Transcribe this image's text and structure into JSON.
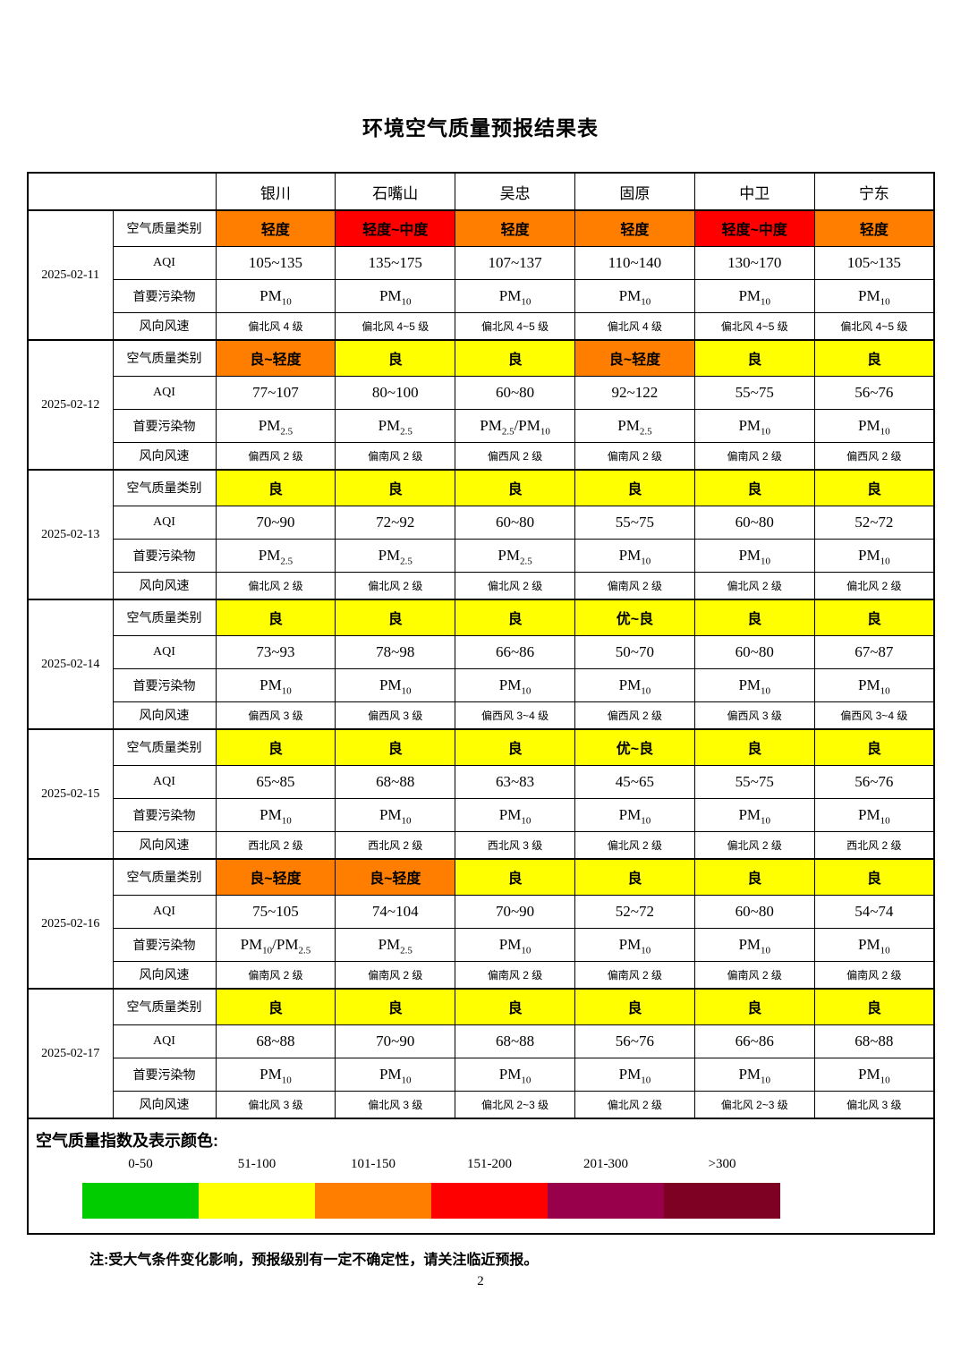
{
  "page": {
    "title": "环境空气质量预报结果表",
    "note": "注:受大气条件变化影响，预报级别有一定不确定性，请关注临近预报。",
    "page_number": "2"
  },
  "colors": {
    "yellow": "#FFFF00",
    "orange": "#FF7E00",
    "red": "#FF0000"
  },
  "table": {
    "cities": [
      "银川",
      "石嘴山",
      "吴忠",
      "固原",
      "中卫",
      "宁东"
    ],
    "row_labels": {
      "category": "空气质量类别",
      "aqi": "AQI",
      "pollutant": "首要污染物",
      "wind": "风向风速"
    },
    "days": [
      {
        "date": "2025-02-11",
        "category": [
          {
            "text": "轻度",
            "color": "orange"
          },
          {
            "text": "轻度~中度",
            "color": "red"
          },
          {
            "text": "轻度",
            "color": "orange"
          },
          {
            "text": "轻度",
            "color": "orange"
          },
          {
            "text": "轻度~中度",
            "color": "red"
          },
          {
            "text": "轻度",
            "color": "orange"
          }
        ],
        "aqi": [
          "105~135",
          "135~175",
          "107~137",
          "110~140",
          "130~170",
          "105~135"
        ],
        "pollutant": [
          "PM10",
          "PM10",
          "PM10",
          "PM10",
          "PM10",
          "PM10"
        ],
        "wind": [
          "偏北风 4 级",
          "偏北风 4~5 级",
          "偏北风 4~5 级",
          "偏北风 4 级",
          "偏北风 4~5 级",
          "偏北风 4~5 级"
        ]
      },
      {
        "date": "2025-02-12",
        "category": [
          {
            "text": "良~轻度",
            "color": "orange"
          },
          {
            "text": "良",
            "color": "yellow"
          },
          {
            "text": "良",
            "color": "yellow"
          },
          {
            "text": "良~轻度",
            "color": "orange"
          },
          {
            "text": "良",
            "color": "yellow"
          },
          {
            "text": "良",
            "color": "yellow"
          }
        ],
        "aqi": [
          "77~107",
          "80~100",
          "60~80",
          "92~122",
          "55~75",
          "56~76"
        ],
        "pollutant": [
          "PM2.5",
          "PM2.5",
          "PM2.5/PM10",
          "PM2.5",
          "PM10",
          "PM10"
        ],
        "wind": [
          "偏西风 2 级",
          "偏南风 2 级",
          "偏西风 2 级",
          "偏南风 2 级",
          "偏南风 2 级",
          "偏西风 2 级"
        ]
      },
      {
        "date": "2025-02-13",
        "category": [
          {
            "text": "良",
            "color": "yellow"
          },
          {
            "text": "良",
            "color": "yellow"
          },
          {
            "text": "良",
            "color": "yellow"
          },
          {
            "text": "良",
            "color": "yellow"
          },
          {
            "text": "良",
            "color": "yellow"
          },
          {
            "text": "良",
            "color": "yellow"
          }
        ],
        "aqi": [
          "70~90",
          "72~92",
          "60~80",
          "55~75",
          "60~80",
          "52~72"
        ],
        "pollutant": [
          "PM2.5",
          "PM2.5",
          "PM2.5",
          "PM10",
          "PM10",
          "PM10"
        ],
        "wind": [
          "偏北风 2 级",
          "偏北风 2 级",
          "偏北风 2 级",
          "偏南风 2 级",
          "偏北风 2 级",
          "偏北风 2 级"
        ]
      },
      {
        "date": "2025-02-14",
        "category": [
          {
            "text": "良",
            "color": "yellow"
          },
          {
            "text": "良",
            "color": "yellow"
          },
          {
            "text": "良",
            "color": "yellow"
          },
          {
            "text": "优~良",
            "color": "yellow"
          },
          {
            "text": "良",
            "color": "yellow"
          },
          {
            "text": "良",
            "color": "yellow"
          }
        ],
        "aqi": [
          "73~93",
          "78~98",
          "66~86",
          "50~70",
          "60~80",
          "67~87"
        ],
        "pollutant": [
          "PM10",
          "PM10",
          "PM10",
          "PM10",
          "PM10",
          "PM10"
        ],
        "wind": [
          "偏西风 3 级",
          "偏西风 3 级",
          "偏西风 3~4 级",
          "偏西风 2 级",
          "偏西风 3 级",
          "偏西风 3~4 级"
        ]
      },
      {
        "date": "2025-02-15",
        "category": [
          {
            "text": "良",
            "color": "yellow"
          },
          {
            "text": "良",
            "color": "yellow"
          },
          {
            "text": "良",
            "color": "yellow"
          },
          {
            "text": "优~良",
            "color": "yellow"
          },
          {
            "text": "良",
            "color": "yellow"
          },
          {
            "text": "良",
            "color": "yellow"
          }
        ],
        "aqi": [
          "65~85",
          "68~88",
          "63~83",
          "45~65",
          "55~75",
          "56~76"
        ],
        "pollutant": [
          "PM10",
          "PM10",
          "PM10",
          "PM10",
          "PM10",
          "PM10"
        ],
        "wind": [
          "西北风 2 级",
          "西北风 2 级",
          "西北风 3 级",
          "偏北风 2 级",
          "偏北风 2 级",
          "西北风 2 级"
        ]
      },
      {
        "date": "2025-02-16",
        "category": [
          {
            "text": "良~轻度",
            "color": "orange"
          },
          {
            "text": "良~轻度",
            "color": "orange"
          },
          {
            "text": "良",
            "color": "yellow"
          },
          {
            "text": "良",
            "color": "yellow"
          },
          {
            "text": "良",
            "color": "yellow"
          },
          {
            "text": "良",
            "color": "yellow"
          }
        ],
        "aqi": [
          "75~105",
          "74~104",
          "70~90",
          "52~72",
          "60~80",
          "54~74"
        ],
        "pollutant": [
          "PM10/PM2.5",
          "PM2.5",
          "PM10",
          "PM10",
          "PM10",
          "PM10"
        ],
        "wind": [
          "偏南风 2 级",
          "偏南风 2 级",
          "偏南风 2 级",
          "偏南风 2 级",
          "偏南风 2 级",
          "偏南风 2 级"
        ]
      },
      {
        "date": "2025-02-17",
        "category": [
          {
            "text": "良",
            "color": "yellow"
          },
          {
            "text": "良",
            "color": "yellow"
          },
          {
            "text": "良",
            "color": "yellow"
          },
          {
            "text": "良",
            "color": "yellow"
          },
          {
            "text": "良",
            "color": "yellow"
          },
          {
            "text": "良",
            "color": "yellow"
          }
        ],
        "aqi": [
          "68~88",
          "70~90",
          "68~88",
          "56~76",
          "66~86",
          "68~88"
        ],
        "pollutant": [
          "PM10",
          "PM10",
          "PM10",
          "PM10",
          "PM10",
          "PM10"
        ],
        "wind": [
          "偏北风 3 级",
          "偏北风 3 级",
          "偏北风 2~3 级",
          "偏北风 2 级",
          "偏北风 2~3 级",
          "偏北风 3 级"
        ]
      }
    ]
  },
  "legend": {
    "title": "空气质量指数及表示颜色:",
    "ranges": [
      "0-50",
      "51-100",
      "101-150",
      "151-200",
      "201-300",
      ">300"
    ],
    "colors": [
      "#00CC00",
      "#FFFF00",
      "#FF7E00",
      "#FF0000",
      "#99004C",
      "#7E0023"
    ]
  }
}
